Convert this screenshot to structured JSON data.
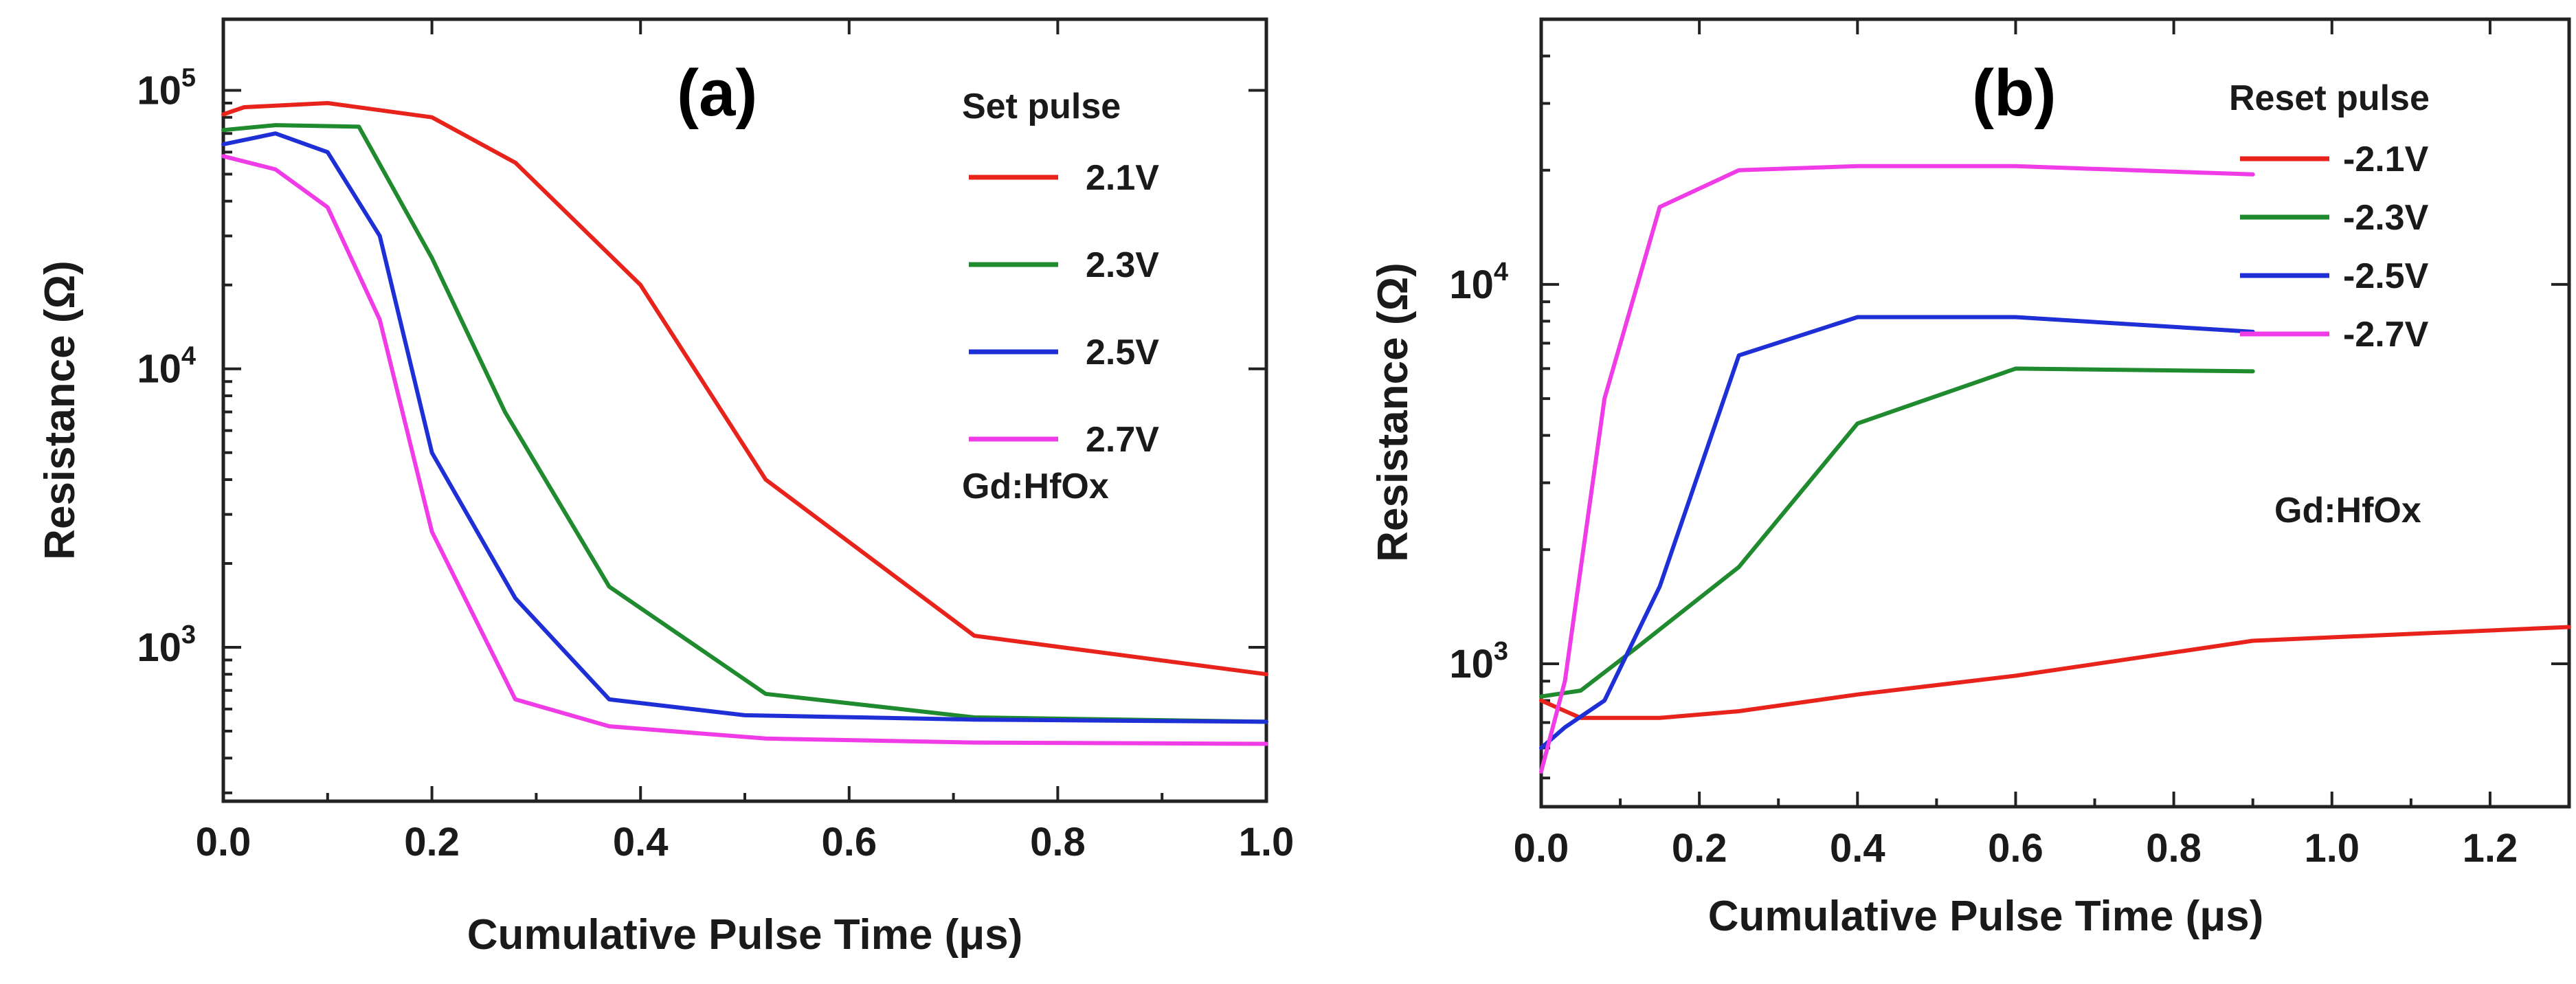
{
  "chart_data": [
    {
      "type": "line",
      "panel_label": "(a)",
      "xlabel": "Cumulative Pulse Time (μs)",
      "ylabel": "Resistance (Ω)",
      "x_scale": "linear",
      "y_scale": "log",
      "xlim": [
        0,
        1.0
      ],
      "ylim": [
        280,
        180000
      ],
      "x_ticks": [
        0,
        0.2,
        0.4,
        0.6,
        0.8,
        1.0
      ],
      "x_tick_labels": [
        "0.0",
        "0.2",
        "0.4",
        "0.6",
        "0.8",
        "1.0"
      ],
      "y_ticks": [
        1000,
        10000,
        100000
      ],
      "y_tick_bases": [
        "10",
        "10",
        "10"
      ],
      "y_tick_exps": [
        "3",
        "4",
        "5"
      ],
      "legend_title": "Set pulse",
      "legend_position": "top-right",
      "annotation": "Gd:HfOx",
      "series": [
        {
          "name": "2.1V",
          "color": "#e8231c",
          "x": [
            0,
            0.02,
            0.1,
            0.2,
            0.28,
            0.4,
            0.52,
            0.72,
            1.0
          ],
          "y": [
            82000,
            87000,
            90000,
            80000,
            55000,
            20000,
            4000,
            1100,
            800
          ]
        },
        {
          "name": "2.3V",
          "color": "#1f8a2e",
          "x": [
            0,
            0.05,
            0.13,
            0.2,
            0.27,
            0.37,
            0.52,
            0.72,
            1.0
          ],
          "y": [
            72000,
            75000,
            74000,
            25000,
            7000,
            1650,
            680,
            560,
            540
          ]
        },
        {
          "name": "2.5V",
          "color": "#1f2fd6",
          "x": [
            0,
            0.05,
            0.1,
            0.15,
            0.2,
            0.28,
            0.37,
            0.5,
            0.72,
            1.0
          ],
          "y": [
            64000,
            70000,
            60000,
            30000,
            5000,
            1500,
            650,
            570,
            550,
            540
          ]
        },
        {
          "name": "2.7V",
          "color": "#f03ce6",
          "x": [
            0,
            0.05,
            0.1,
            0.15,
            0.2,
            0.28,
            0.37,
            0.52,
            0.72,
            1.0
          ],
          "y": [
            58000,
            52000,
            38000,
            15000,
            2600,
            650,
            520,
            470,
            455,
            450
          ]
        }
      ]
    },
    {
      "type": "line",
      "panel_label": "(b)",
      "xlabel": "Cumulative Pulse Time (μs)",
      "ylabel": "Resistance (Ω)",
      "x_scale": "linear",
      "y_scale": "log",
      "xlim": [
        0,
        1.3
      ],
      "ylim": [
        420,
        50000
      ],
      "x_ticks": [
        0,
        0.2,
        0.4,
        0.6,
        0.8,
        1.0,
        1.2
      ],
      "x_tick_labels": [
        "0.0",
        "0.2",
        "0.4",
        "0.6",
        "0.8",
        "1.0",
        "1.2"
      ],
      "y_ticks": [
        1000,
        10000
      ],
      "y_tick_bases": [
        "10",
        "10"
      ],
      "y_tick_exps": [
        "3",
        "4"
      ],
      "legend_title": "Reset pulse",
      "legend_position": "top-right",
      "annotation": "Gd:HfOx",
      "series": [
        {
          "name": "-2.1V",
          "color": "#e8231c",
          "x": [
            0,
            0.05,
            0.15,
            0.25,
            0.4,
            0.6,
            0.9,
            1.3
          ],
          "y": [
            800,
            720,
            720,
            750,
            830,
            930,
            1150,
            1250
          ]
        },
        {
          "name": "-2.3V",
          "color": "#1f8a2e",
          "x": [
            0,
            0.05,
            0.12,
            0.25,
            0.4,
            0.6,
            0.9
          ],
          "y": [
            820,
            850,
            1100,
            1800,
            4300,
            6000,
            5900
          ]
        },
        {
          "name": "-2.5V",
          "color": "#1f2fd6",
          "x": [
            0,
            0.03,
            0.08,
            0.15,
            0.25,
            0.4,
            0.6,
            0.9
          ],
          "y": [
            600,
            680,
            800,
            1600,
            6500,
            8200,
            8200,
            7500
          ]
        },
        {
          "name": "-2.7V",
          "color": "#f03ce6",
          "x": [
            0,
            0.03,
            0.08,
            0.15,
            0.25,
            0.4,
            0.6,
            0.9
          ],
          "y": [
            520,
            900,
            5000,
            16000,
            20000,
            20500,
            20500,
            19500
          ]
        }
      ]
    }
  ]
}
